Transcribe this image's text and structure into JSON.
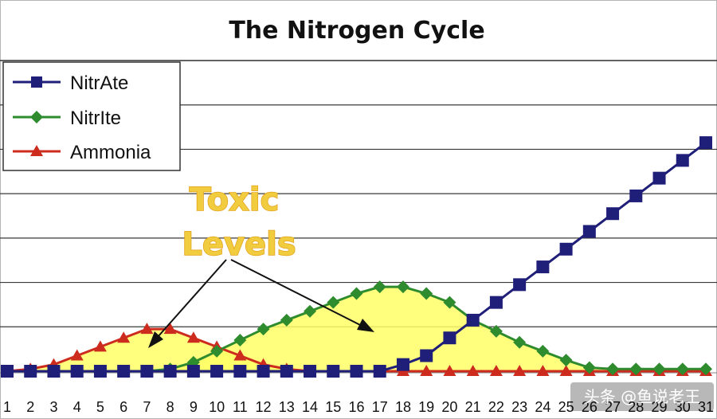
{
  "chart_data": {
    "type": "line",
    "title": "The Nitrogen Cycle",
    "xlabel": "",
    "ylabel": "",
    "x": [
      1,
      2,
      3,
      4,
      5,
      6,
      7,
      8,
      9,
      10,
      11,
      12,
      13,
      14,
      15,
      16,
      17,
      18,
      19,
      20,
      21,
      22,
      23,
      24,
      25,
      26,
      27,
      28,
      29,
      30,
      31
    ],
    "x_tick_labels": [
      "1",
      "2",
      "3",
      "4",
      "5",
      "6",
      "7",
      "8",
      "9",
      "10",
      "11",
      "12",
      "13",
      "14",
      "15",
      "16",
      "17",
      "18",
      "19",
      "20",
      "21",
      "22",
      "23",
      "24",
      "25",
      "26",
      "27",
      "28",
      "29",
      "30",
      "31"
    ],
    "ylim": [
      0,
      7
    ],
    "grid": true,
    "legend_position": "top-left",
    "series": [
      {
        "name": "NitrAte",
        "marker": "square",
        "color": "#1f1f7a",
        "fill": false,
        "values": [
          0,
          0,
          0,
          0,
          0,
          0,
          0,
          0,
          0,
          0,
          0,
          0,
          0,
          0,
          0,
          0,
          0,
          0.15,
          0.35,
          0.75,
          1.15,
          1.55,
          1.95,
          2.35,
          2.75,
          3.15,
          3.55,
          3.95,
          4.35,
          4.75,
          5.15
        ]
      },
      {
        "name": "NitrIte",
        "marker": "diamond",
        "color": "#2e8b2e",
        "fill": true,
        "fill_color": "#ffff66",
        "values": [
          0,
          0,
          0,
          0,
          0,
          0,
          0,
          0.05,
          0.2,
          0.45,
          0.7,
          0.95,
          1.15,
          1.35,
          1.55,
          1.75,
          1.9,
          1.9,
          1.75,
          1.55,
          1.15,
          0.9,
          0.65,
          0.45,
          0.25,
          0.08,
          0.05,
          0.05,
          0.05,
          0.05,
          0.05
        ]
      },
      {
        "name": "Ammonia",
        "marker": "triangle",
        "color": "#cc2b1d",
        "fill": true,
        "fill_color": "#ffff66",
        "values": [
          0,
          0.05,
          0.15,
          0.35,
          0.55,
          0.75,
          0.95,
          0.95,
          0.75,
          0.55,
          0.35,
          0.15,
          0.05,
          0,
          0,
          0,
          0,
          0,
          0,
          0,
          0,
          0,
          0,
          0,
          0,
          0,
          0,
          0,
          0,
          0,
          0
        ]
      }
    ],
    "annotation": {
      "lines": [
        "Toxic",
        "Levels"
      ],
      "color": "#f1cc3e"
    }
  },
  "watermark": "头条 @鱼说老王"
}
